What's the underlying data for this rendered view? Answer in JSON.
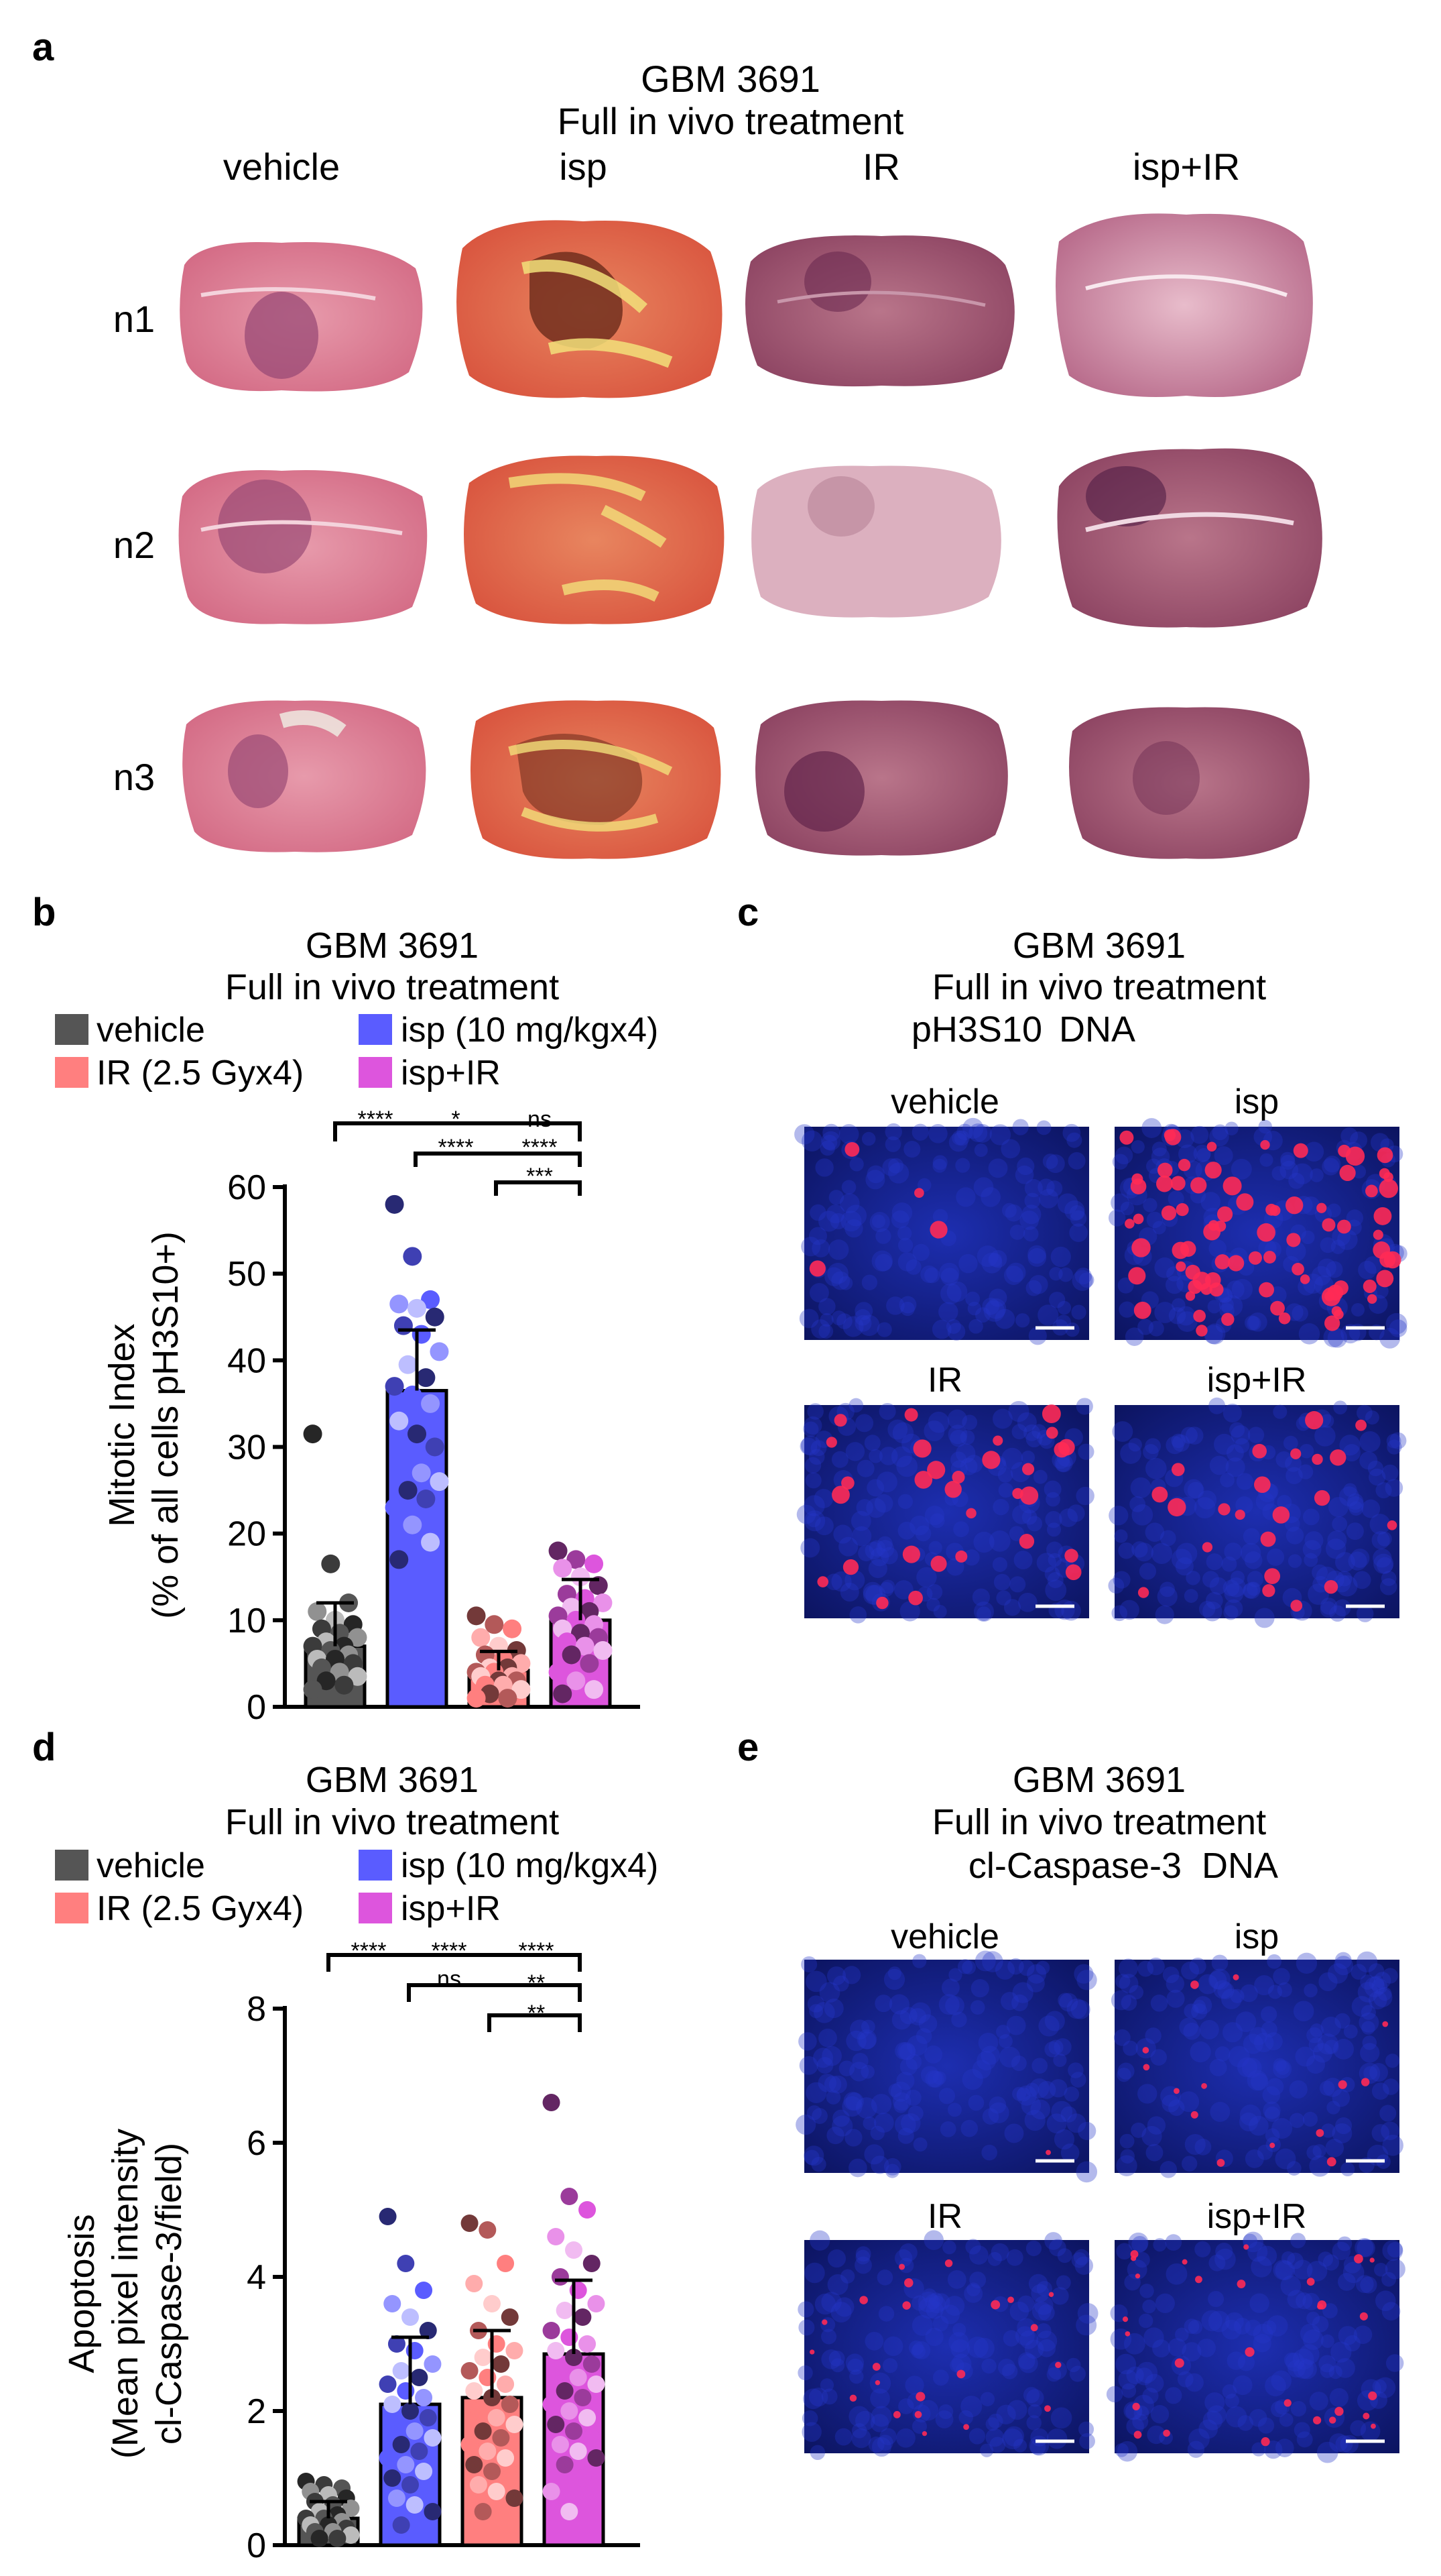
{
  "panel_a": {
    "letter": "a",
    "title1": "GBM 3691",
    "title2": "Full in vivo treatment",
    "columns": [
      "vehicle",
      "isp",
      "IR",
      "isp+IR"
    ],
    "rows": [
      "n1",
      "n2",
      "n3"
    ]
  },
  "panel_b": {
    "letter": "b",
    "title1": "GBM 3691",
    "title2": "Full in vivo treatment",
    "legend": [
      {
        "label": "vehicle",
        "color": "#555555"
      },
      {
        "label": "isp (10 mg/kgx4)",
        "color": "#5a5cff"
      },
      {
        "label": "IR (2.5 Gyx4)",
        "color": "#ff7f7f"
      },
      {
        "label": "isp+IR",
        "color": "#dd55dd"
      }
    ],
    "sig": [
      "****",
      "*",
      "ns",
      "****",
      "****",
      "***"
    ]
  },
  "panel_c": {
    "letter": "c",
    "title1": "GBM 3691",
    "title2": "Full in vivo treatment",
    "marker": "pH3S10",
    "marker_color": "#ff1a1a",
    "dna": "DNA",
    "dna_color": "#2222dd",
    "tiles": [
      "vehicle",
      "isp",
      "IR",
      "isp+IR"
    ]
  },
  "panel_d": {
    "letter": "d",
    "title1": "GBM 3691",
    "title2": "Full in vivo treatment",
    "legend": [
      {
        "label": "vehicle",
        "color": "#555555"
      },
      {
        "label": "isp (10 mg/kgx4)",
        "color": "#5a5cff"
      },
      {
        "label": "IR (2.5 Gyx4)",
        "color": "#ff7f7f"
      },
      {
        "label": "isp+IR",
        "color": "#dd55dd"
      }
    ],
    "sig": [
      "****",
      "****",
      "****",
      "ns",
      "**",
      "**"
    ]
  },
  "panel_e": {
    "letter": "e",
    "title1": "GBM 3691",
    "title2": "Full in vivo treatment",
    "marker": "cl-Caspase-3",
    "marker_color": "#ff1a1a",
    "dna": "DNA",
    "dna_color": "#2222dd",
    "tiles": [
      "vehicle",
      "isp",
      "IR",
      "isp+IR"
    ]
  },
  "chart_data": [
    {
      "type": "bar",
      "panel": "b",
      "ylabel_line1": "Mitotic Index",
      "ylabel_line2": "(% of all cells pH3S10+)",
      "ylim": [
        0,
        60
      ],
      "yticks": [
        0,
        10,
        20,
        30,
        40,
        50,
        60
      ],
      "categories": [
        "vehicle",
        "isp (10 mg/kgx4)",
        "IR (2.5 Gyx4)",
        "isp+IR"
      ],
      "values": [
        7.0,
        36.5,
        4.2,
        10.0
      ],
      "errors": [
        5.0,
        7.0,
        2.2,
        4.7
      ],
      "colors": [
        "#555555",
        "#5a5cff",
        "#ff7f7f",
        "#dd55dd"
      ],
      "points": [
        [
          31.5,
          16.5,
          12,
          11,
          10,
          9.5,
          9,
          8.5,
          8,
          7.5,
          7,
          7,
          6.5,
          6,
          5.5,
          5.5,
          5,
          4.5,
          4,
          3.5,
          3,
          2.5,
          2
        ],
        [
          58,
          52,
          47,
          46.5,
          46,
          45,
          44,
          43,
          41,
          39.5,
          38,
          37,
          36,
          35,
          33,
          31.5,
          30,
          28,
          27,
          26,
          25,
          24,
          23,
          21,
          19,
          17
        ],
        [
          10.5,
          9.5,
          9,
          8,
          7,
          6.5,
          6,
          5.5,
          5,
          4.5,
          4.5,
          4,
          4,
          3.5,
          3.5,
          3,
          3,
          2.5,
          2.5,
          2,
          1.5,
          1,
          1
        ],
        [
          18,
          17,
          16.5,
          16,
          15,
          14,
          13,
          12.5,
          12,
          11.5,
          11,
          10.5,
          10,
          9.5,
          9,
          8.5,
          8,
          7.5,
          7,
          6.5,
          6,
          5,
          4,
          3,
          2,
          1.5
        ]
      ]
    },
    {
      "type": "bar",
      "panel": "d",
      "ylabel_line1": "Apoptosis",
      "ylabel_line2": "(Mean pixel intensity",
      "ylabel_line3": "cl-Caspase-3/field)",
      "ylim": [
        0,
        8
      ],
      "yticks": [
        0,
        2,
        4,
        6,
        8
      ],
      "categories": [
        "vehicle",
        "isp (10 mg/kgx4)",
        "IR (2.5 Gyx4)",
        "isp+IR"
      ],
      "values": [
        0.4,
        2.1,
        2.2,
        2.85
      ],
      "errors": [
        0.25,
        1.0,
        1.0,
        1.1
      ],
      "colors": [
        "#555555",
        "#5a5cff",
        "#ff7f7f",
        "#dd55dd"
      ],
      "points": [
        [
          0.95,
          0.9,
          0.85,
          0.8,
          0.75,
          0.7,
          0.65,
          0.6,
          0.55,
          0.5,
          0.45,
          0.4,
          0.4,
          0.35,
          0.3,
          0.3,
          0.25,
          0.2,
          0.2,
          0.15,
          0.1,
          0.1
        ],
        [
          4.9,
          4.2,
          3.8,
          3.6,
          3.4,
          3.2,
          3.0,
          2.9,
          2.7,
          2.6,
          2.5,
          2.4,
          2.3,
          2.2,
          2.1,
          2.0,
          1.9,
          1.8,
          1.7,
          1.6,
          1.5,
          1.4,
          1.3,
          1.2,
          1.1,
          1.0,
          0.9,
          0.8,
          0.7,
          0.6,
          0.5,
          0.3
        ],
        [
          4.8,
          4.7,
          4.2,
          3.9,
          3.6,
          3.4,
          3.2,
          3.0,
          2.9,
          2.8,
          2.7,
          2.6,
          2.5,
          2.4,
          2.3,
          2.2,
          2.1,
          2.0,
          1.9,
          1.8,
          1.7,
          1.6,
          1.5,
          1.4,
          1.3,
          1.2,
          1.1,
          1.0,
          0.9,
          0.8,
          0.7,
          0.5
        ],
        [
          6.6,
          5.2,
          5.0,
          4.6,
          4.4,
          4.2,
          4.0,
          3.8,
          3.6,
          3.5,
          3.4,
          3.2,
          3.1,
          3.0,
          2.9,
          2.8,
          2.7,
          2.6,
          2.5,
          2.4,
          2.3,
          2.2,
          2.1,
          2.0,
          1.9,
          1.8,
          1.7,
          1.6,
          1.5,
          1.4,
          1.3,
          1.2,
          1.0,
          0.8,
          0.5
        ]
      ]
    }
  ]
}
